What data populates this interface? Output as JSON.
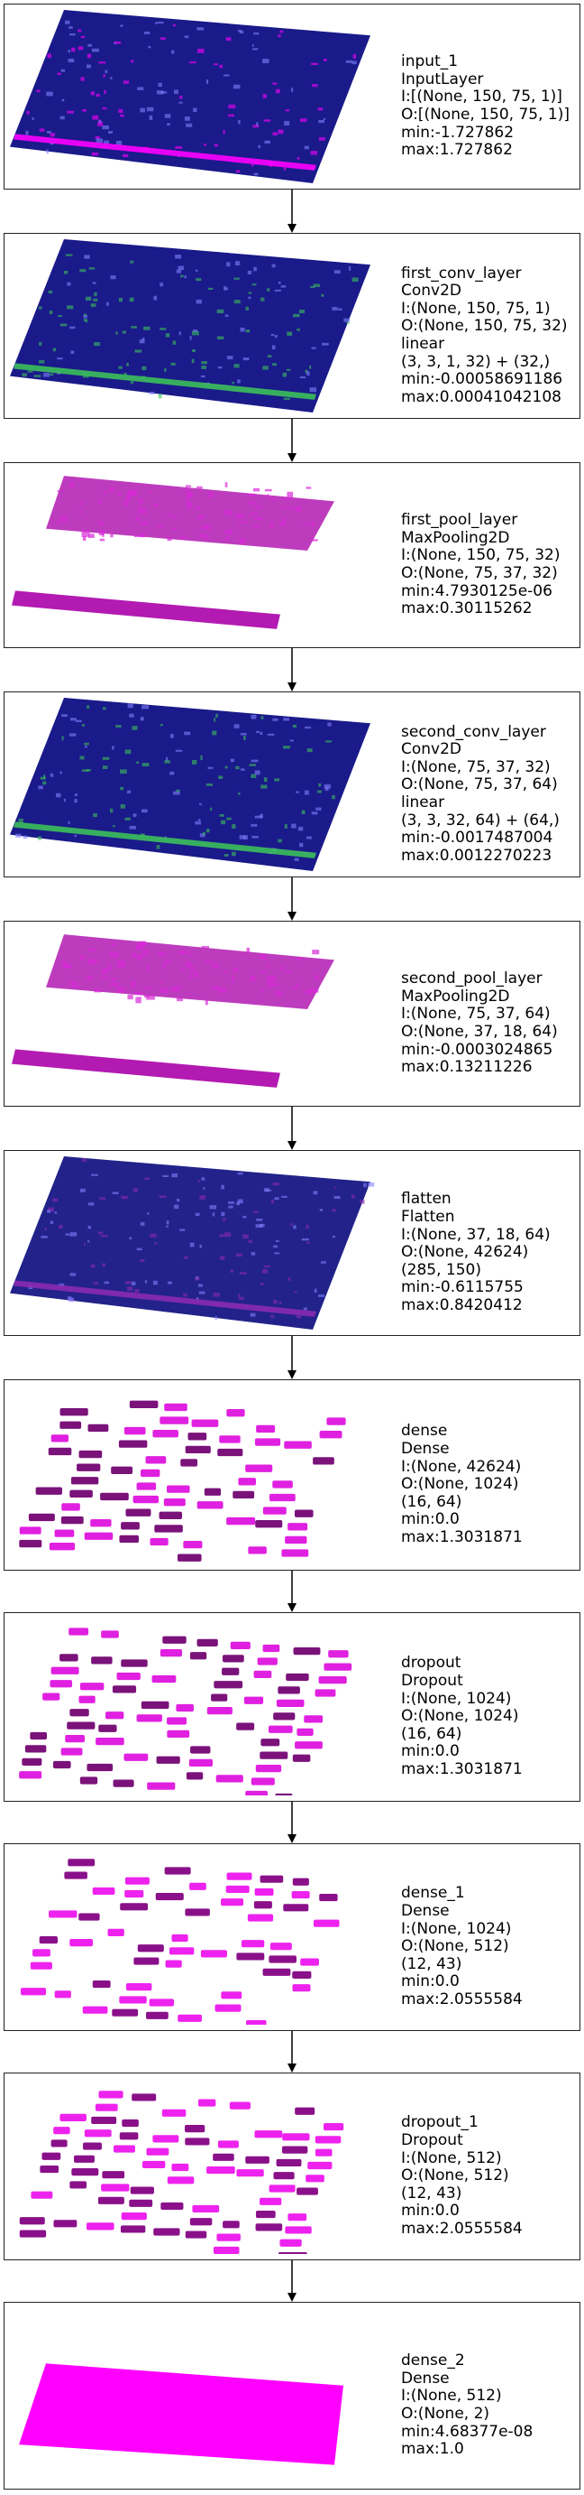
{
  "layers": [
    {
      "lines": [
        "input_1",
        "InputLayer",
        "I:[(None, 150, 75, 1)]",
        "O:[(None, 150, 75, 1)]",
        "min:-1.727862",
        "max:1.727862"
      ],
      "viz": "plane",
      "base": "#1a1a8a",
      "accent": "#ff00ff"
    },
    {
      "lines": [
        "first_conv_layer",
        "Conv2D",
        "I:(None, 150, 75, 1)",
        "O:(None, 150, 75, 32)",
        "linear",
        "(3, 3, 1, 32) + (32,)",
        "min:-0.00058691186",
        "max:0.00041042108"
      ],
      "viz": "plane",
      "base": "#1a1a8a",
      "accent": "#3cbf5a"
    },
    {
      "lines": [
        "first_pool_layer",
        "MaxPooling2D",
        "I:(None, 150, 75, 32)",
        "O:(None, 75, 37, 32)",
        "min:4.7930125e-06",
        "max:0.30115262"
      ],
      "viz": "split",
      "base": "#b21ab2",
      "accent": "#d82ad8"
    },
    {
      "lines": [
        "second_conv_layer",
        "Conv2D",
        "I:(None, 75, 37, 32)",
        "O:(None, 75, 37, 64)",
        "linear",
        "(3, 3, 32, 64) + (64,)",
        "min:-0.0017487004",
        "max:0.0012270223"
      ],
      "viz": "plane",
      "base": "#1a1a8a",
      "accent": "#3cbf5a"
    },
    {
      "lines": [
        "second_pool_layer",
        "MaxPooling2D",
        "I:(None, 75, 37, 64)",
        "O:(None, 37, 18, 64)",
        "min:-0.0003024865",
        "max:0.13211226"
      ],
      "viz": "split",
      "base": "#b21ab2",
      "accent": "#d82ad8"
    },
    {
      "lines": [
        "flatten",
        "Flatten",
        "I:(None, 37, 18, 64)",
        "O:(None, 42624)",
        "(285, 150)",
        "min:-0.6115755",
        "max:0.8420412"
      ],
      "viz": "plane",
      "base": "#22228a",
      "accent": "#8a2ab0"
    },
    {
      "lines": [
        "dense",
        "Dense",
        "I:(None, 42624)",
        "O:(None, 1024)",
        "(16, 64)",
        "min:0.0",
        "max:1.3031871"
      ],
      "viz": "blocks",
      "base": "#7a127a",
      "accent": "#e020e0"
    },
    {
      "lines": [
        "dropout",
        "Dropout",
        "I:(None, 1024)",
        "O:(None, 1024)",
        "(16, 64)",
        "min:0.0",
        "max:1.3031871"
      ],
      "viz": "blocks",
      "base": "#7a127a",
      "accent": "#e020e0"
    },
    {
      "lines": [
        "dense_1",
        "Dense",
        "I:(None, 1024)",
        "O:(None, 512)",
        "(12, 43)",
        "min:0.0",
        "max:2.0555584"
      ],
      "viz": "blocks",
      "base": "#8a108a",
      "accent": "#ee22ee"
    },
    {
      "lines": [
        "dropout_1",
        "Dropout",
        "I:(None, 512)",
        "O:(None, 512)",
        "(12, 43)",
        "min:0.0",
        "max:2.0555584"
      ],
      "viz": "blocks",
      "base": "#8a108a",
      "accent": "#ee22ee"
    },
    {
      "lines": [
        "dense_2",
        "Dense",
        "I:(None, 512)",
        "O:(None, 2)",
        "min:4.68377e-08",
        "max:1.0"
      ],
      "viz": "solid",
      "base": "#ff00ff",
      "accent": "#ff00ff"
    }
  ]
}
